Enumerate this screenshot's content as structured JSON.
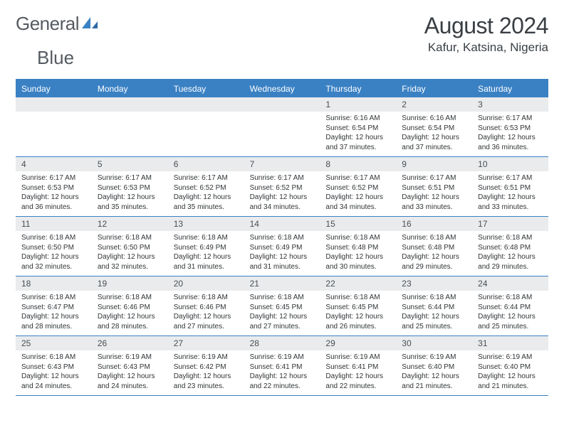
{
  "logo": {
    "text1": "General",
    "text2": "Blue"
  },
  "title": "August 2024",
  "location": "Kafur, Katsina, Nigeria",
  "colors": {
    "header_bg": "#3a81c4",
    "daynum_bg": "#e9ebed",
    "text": "#303437",
    "logo_text": "#555b61"
  },
  "dayNames": [
    "Sunday",
    "Monday",
    "Tuesday",
    "Wednesday",
    "Thursday",
    "Friday",
    "Saturday"
  ],
  "weeks": [
    [
      {
        "n": "",
        "sr": "",
        "ss": "",
        "dl": ""
      },
      {
        "n": "",
        "sr": "",
        "ss": "",
        "dl": ""
      },
      {
        "n": "",
        "sr": "",
        "ss": "",
        "dl": ""
      },
      {
        "n": "",
        "sr": "",
        "ss": "",
        "dl": ""
      },
      {
        "n": "1",
        "sr": "Sunrise: 6:16 AM",
        "ss": "Sunset: 6:54 PM",
        "dl": "Daylight: 12 hours and 37 minutes."
      },
      {
        "n": "2",
        "sr": "Sunrise: 6:16 AM",
        "ss": "Sunset: 6:54 PM",
        "dl": "Daylight: 12 hours and 37 minutes."
      },
      {
        "n": "3",
        "sr": "Sunrise: 6:17 AM",
        "ss": "Sunset: 6:53 PM",
        "dl": "Daylight: 12 hours and 36 minutes."
      }
    ],
    [
      {
        "n": "4",
        "sr": "Sunrise: 6:17 AM",
        "ss": "Sunset: 6:53 PM",
        "dl": "Daylight: 12 hours and 36 minutes."
      },
      {
        "n": "5",
        "sr": "Sunrise: 6:17 AM",
        "ss": "Sunset: 6:53 PM",
        "dl": "Daylight: 12 hours and 35 minutes."
      },
      {
        "n": "6",
        "sr": "Sunrise: 6:17 AM",
        "ss": "Sunset: 6:52 PM",
        "dl": "Daylight: 12 hours and 35 minutes."
      },
      {
        "n": "7",
        "sr": "Sunrise: 6:17 AM",
        "ss": "Sunset: 6:52 PM",
        "dl": "Daylight: 12 hours and 34 minutes."
      },
      {
        "n": "8",
        "sr": "Sunrise: 6:17 AM",
        "ss": "Sunset: 6:52 PM",
        "dl": "Daylight: 12 hours and 34 minutes."
      },
      {
        "n": "9",
        "sr": "Sunrise: 6:17 AM",
        "ss": "Sunset: 6:51 PM",
        "dl": "Daylight: 12 hours and 33 minutes."
      },
      {
        "n": "10",
        "sr": "Sunrise: 6:17 AM",
        "ss": "Sunset: 6:51 PM",
        "dl": "Daylight: 12 hours and 33 minutes."
      }
    ],
    [
      {
        "n": "11",
        "sr": "Sunrise: 6:18 AM",
        "ss": "Sunset: 6:50 PM",
        "dl": "Daylight: 12 hours and 32 minutes."
      },
      {
        "n": "12",
        "sr": "Sunrise: 6:18 AM",
        "ss": "Sunset: 6:50 PM",
        "dl": "Daylight: 12 hours and 32 minutes."
      },
      {
        "n": "13",
        "sr": "Sunrise: 6:18 AM",
        "ss": "Sunset: 6:49 PM",
        "dl": "Daylight: 12 hours and 31 minutes."
      },
      {
        "n": "14",
        "sr": "Sunrise: 6:18 AM",
        "ss": "Sunset: 6:49 PM",
        "dl": "Daylight: 12 hours and 31 minutes."
      },
      {
        "n": "15",
        "sr": "Sunrise: 6:18 AM",
        "ss": "Sunset: 6:48 PM",
        "dl": "Daylight: 12 hours and 30 minutes."
      },
      {
        "n": "16",
        "sr": "Sunrise: 6:18 AM",
        "ss": "Sunset: 6:48 PM",
        "dl": "Daylight: 12 hours and 29 minutes."
      },
      {
        "n": "17",
        "sr": "Sunrise: 6:18 AM",
        "ss": "Sunset: 6:48 PM",
        "dl": "Daylight: 12 hours and 29 minutes."
      }
    ],
    [
      {
        "n": "18",
        "sr": "Sunrise: 6:18 AM",
        "ss": "Sunset: 6:47 PM",
        "dl": "Daylight: 12 hours and 28 minutes."
      },
      {
        "n": "19",
        "sr": "Sunrise: 6:18 AM",
        "ss": "Sunset: 6:46 PM",
        "dl": "Daylight: 12 hours and 28 minutes."
      },
      {
        "n": "20",
        "sr": "Sunrise: 6:18 AM",
        "ss": "Sunset: 6:46 PM",
        "dl": "Daylight: 12 hours and 27 minutes."
      },
      {
        "n": "21",
        "sr": "Sunrise: 6:18 AM",
        "ss": "Sunset: 6:45 PM",
        "dl": "Daylight: 12 hours and 27 minutes."
      },
      {
        "n": "22",
        "sr": "Sunrise: 6:18 AM",
        "ss": "Sunset: 6:45 PM",
        "dl": "Daylight: 12 hours and 26 minutes."
      },
      {
        "n": "23",
        "sr": "Sunrise: 6:18 AM",
        "ss": "Sunset: 6:44 PM",
        "dl": "Daylight: 12 hours and 25 minutes."
      },
      {
        "n": "24",
        "sr": "Sunrise: 6:18 AM",
        "ss": "Sunset: 6:44 PM",
        "dl": "Daylight: 12 hours and 25 minutes."
      }
    ],
    [
      {
        "n": "25",
        "sr": "Sunrise: 6:18 AM",
        "ss": "Sunset: 6:43 PM",
        "dl": "Daylight: 12 hours and 24 minutes."
      },
      {
        "n": "26",
        "sr": "Sunrise: 6:19 AM",
        "ss": "Sunset: 6:43 PM",
        "dl": "Daylight: 12 hours and 24 minutes."
      },
      {
        "n": "27",
        "sr": "Sunrise: 6:19 AM",
        "ss": "Sunset: 6:42 PM",
        "dl": "Daylight: 12 hours and 23 minutes."
      },
      {
        "n": "28",
        "sr": "Sunrise: 6:19 AM",
        "ss": "Sunset: 6:41 PM",
        "dl": "Daylight: 12 hours and 22 minutes."
      },
      {
        "n": "29",
        "sr": "Sunrise: 6:19 AM",
        "ss": "Sunset: 6:41 PM",
        "dl": "Daylight: 12 hours and 22 minutes."
      },
      {
        "n": "30",
        "sr": "Sunrise: 6:19 AM",
        "ss": "Sunset: 6:40 PM",
        "dl": "Daylight: 12 hours and 21 minutes."
      },
      {
        "n": "31",
        "sr": "Sunrise: 6:19 AM",
        "ss": "Sunset: 6:40 PM",
        "dl": "Daylight: 12 hours and 21 minutes."
      }
    ]
  ]
}
